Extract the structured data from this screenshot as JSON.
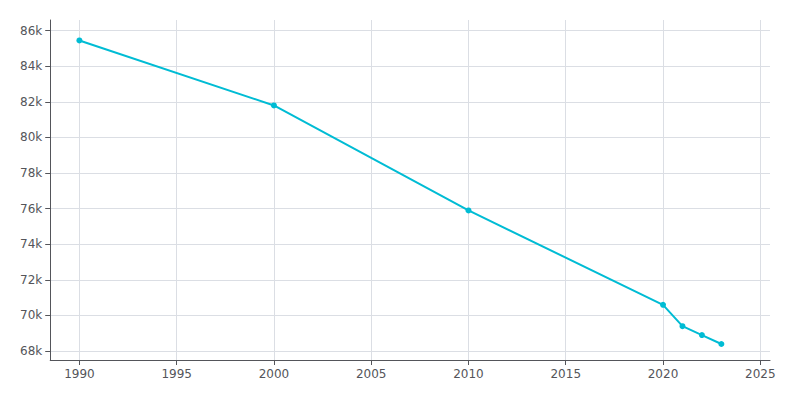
{
  "chart_data": {
    "type": "line",
    "x": [
      1990,
      2000,
      2010,
      2020,
      2021,
      2022,
      2023
    ],
    "values": [
      85450,
      81800,
      75900,
      70600,
      69400,
      68900,
      68400
    ],
    "color": "#00BCD4",
    "marker": "circle",
    "xlim": [
      1988.5,
      2025.5
    ],
    "xticks": [
      1990,
      1995,
      2000,
      2005,
      2010,
      2015,
      2020,
      2025
    ],
    "ylim": [
      67500,
      86600
    ],
    "yticks": [
      {
        "value": 68000,
        "label": "68k"
      },
      {
        "value": 70000,
        "label": "70k"
      },
      {
        "value": 72000,
        "label": "72k"
      },
      {
        "value": 74000,
        "label": "74k"
      },
      {
        "value": 76000,
        "label": "76k"
      },
      {
        "value": 78000,
        "label": "78k"
      },
      {
        "value": 80000,
        "label": "80k"
      },
      {
        "value": 82000,
        "label": "82k"
      },
      {
        "value": 84000,
        "label": "84k"
      },
      {
        "value": 86000,
        "label": "86k"
      }
    ],
    "grid": true
  }
}
